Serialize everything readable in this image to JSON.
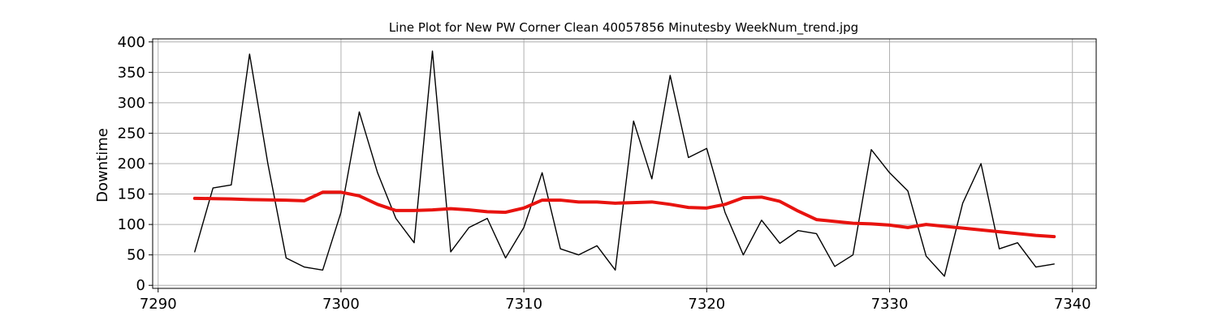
{
  "chart_data": {
    "type": "line",
    "title": "Line Plot for New PW Corner Clean 40057856 Minutesby WeekNum_trend.jpg",
    "xlabel": "",
    "ylabel": "Downtime",
    "xlim": [
      7289.7,
      7341.3
    ],
    "ylim": [
      -5,
      405
    ],
    "xticks": [
      7290,
      7300,
      7310,
      7320,
      7330,
      7340
    ],
    "yticks": [
      0,
      50,
      100,
      150,
      200,
      250,
      300,
      350,
      400
    ],
    "grid": true,
    "x": [
      7292,
      7293,
      7294,
      7295,
      7296,
      7297,
      7298,
      7299,
      7300,
      7301,
      7302,
      7303,
      7304,
      7305,
      7306,
      7307,
      7308,
      7309,
      7310,
      7311,
      7312,
      7313,
      7314,
      7315,
      7316,
      7317,
      7318,
      7319,
      7320,
      7321,
      7322,
      7323,
      7324,
      7325,
      7326,
      7327,
      7328,
      7329,
      7330,
      7331,
      7332,
      7333,
      7334,
      7335,
      7336,
      7337,
      7338,
      7339
    ],
    "series": [
      {
        "color": "#000000",
        "values": [
          55,
          160,
          165,
          380,
          200,
          45,
          30,
          25,
          120,
          285,
          185,
          110,
          70,
          385,
          55,
          95,
          110,
          45,
          95,
          185,
          60,
          50,
          65,
          25,
          270,
          175,
          345,
          210,
          225,
          120,
          50,
          107,
          69,
          90,
          85,
          31,
          50,
          223,
          185,
          155,
          48,
          15,
          135,
          200,
          60,
          70,
          30,
          35
        ]
      },
      {
        "color": "#e8130f",
        "values": [
          143,
          142.5,
          142,
          141,
          140.5,
          140,
          139,
          153,
          153,
          147,
          133,
          123,
          123,
          124,
          126,
          124,
          121,
          120,
          127,
          140,
          140,
          137,
          137,
          135,
          136,
          137,
          133,
          128,
          127,
          133,
          144,
          145,
          138,
          122,
          108,
          105,
          102,
          101,
          99,
          95,
          100,
          97,
          94,
          91,
          88,
          85,
          82,
          80
        ]
      }
    ]
  }
}
